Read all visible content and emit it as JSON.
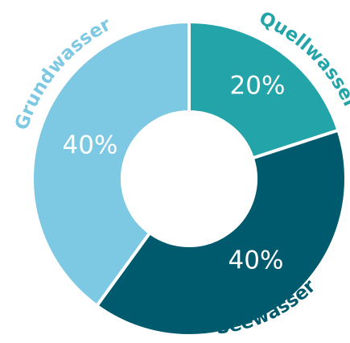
{
  "chart_data": {
    "type": "pie",
    "donut": true,
    "title": "",
    "slices": [
      {
        "label": "Quellwasser",
        "value": 20,
        "value_label": "20%",
        "color": "#22a4a8",
        "label_color": "#22a4a8"
      },
      {
        "label": "Seewasser",
        "value": 40,
        "value_label": "40%",
        "color": "#005a6e",
        "label_color": "#005a6e"
      },
      {
        "label": "Grundwasser",
        "value": 40,
        "value_label": "40%",
        "color": "#7dc8e3",
        "label_color": "#7dc8e3"
      }
    ],
    "legend": "none",
    "separator_color": "#ffffff"
  }
}
